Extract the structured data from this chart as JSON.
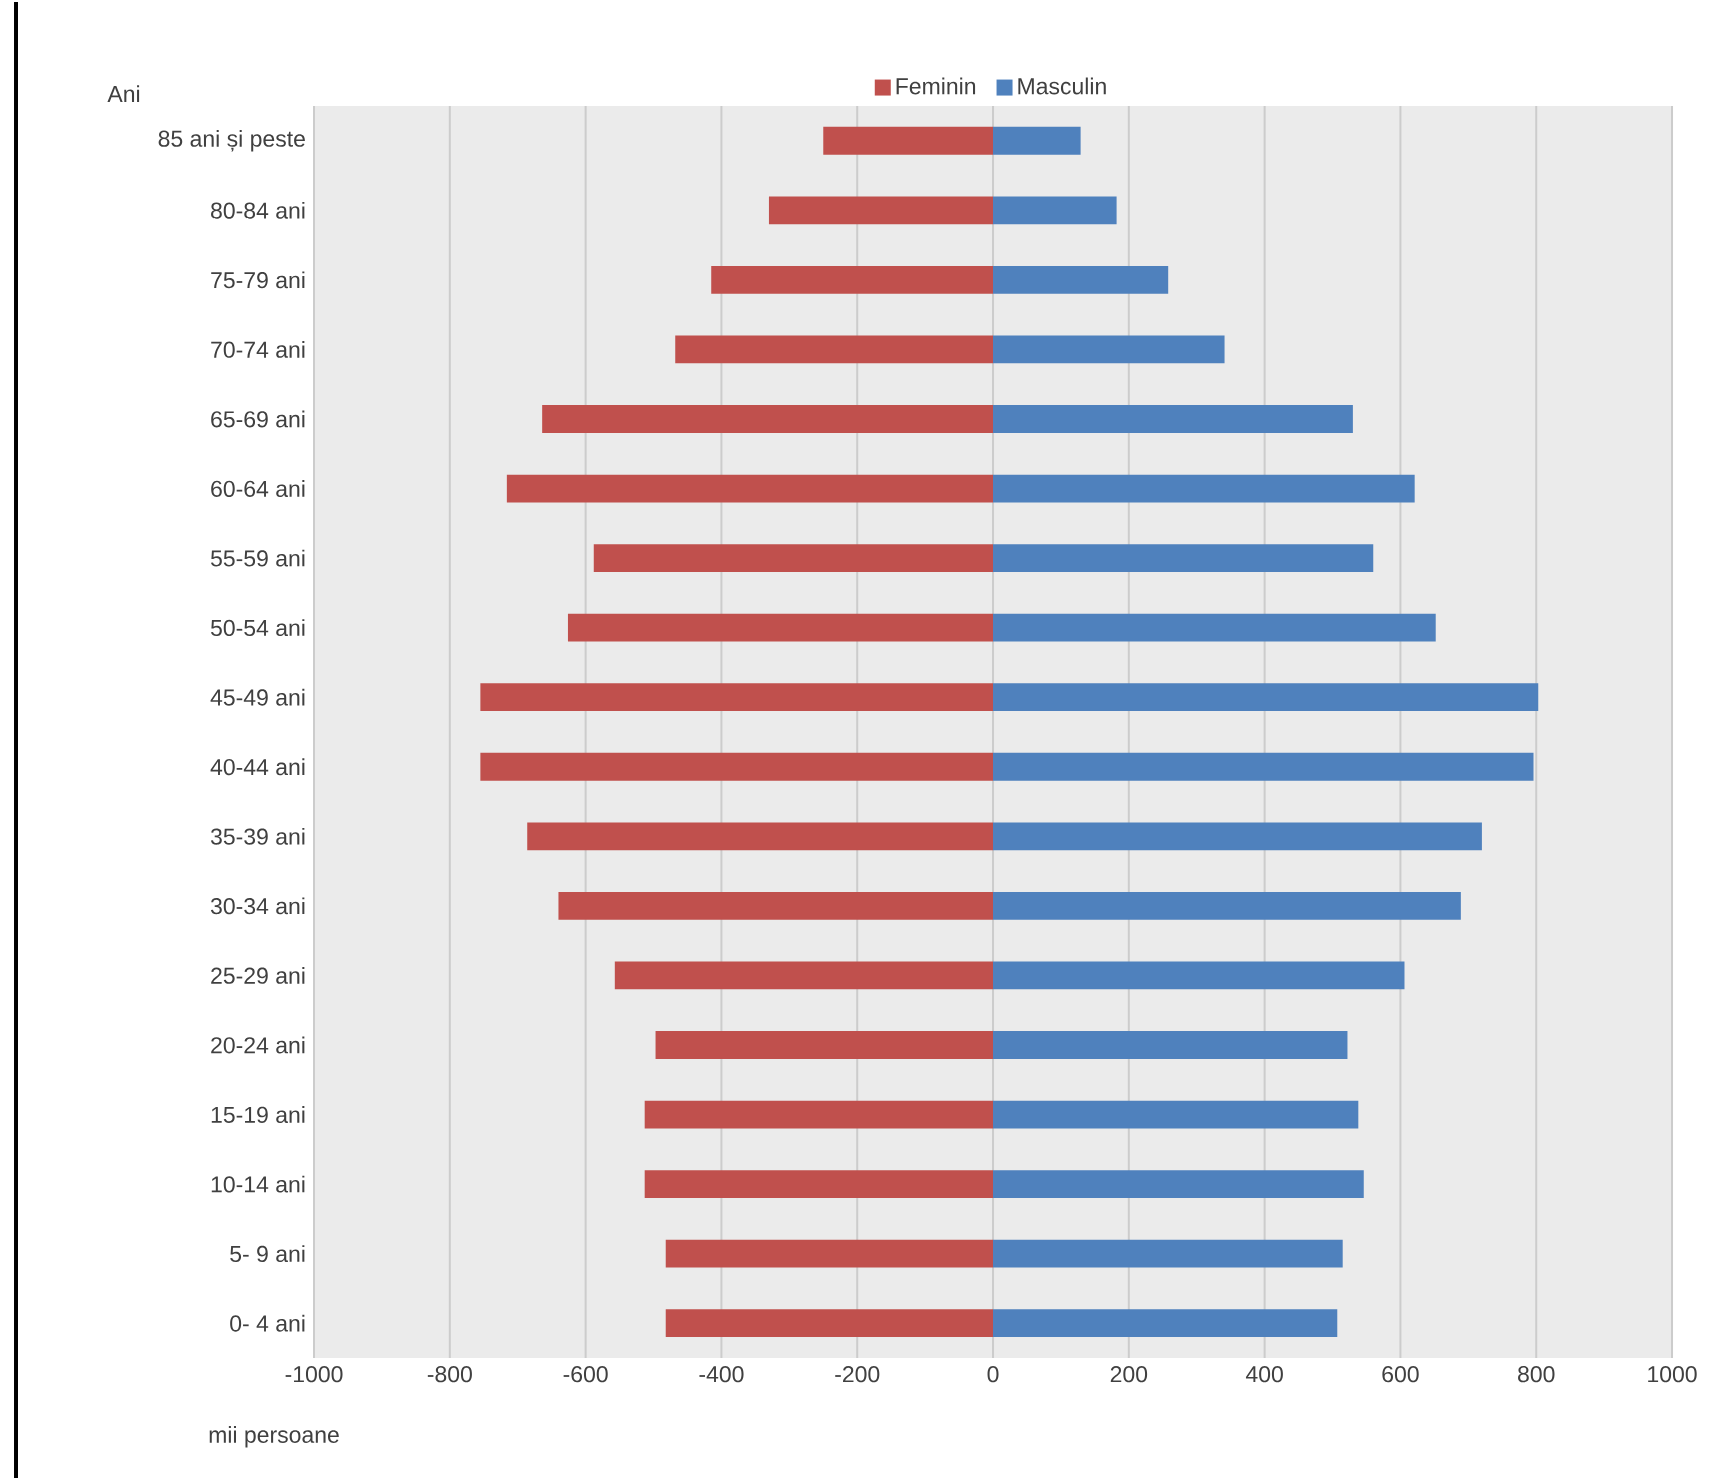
{
  "chart_data": {
    "type": "bar",
    "orientation": "horizontal",
    "stacked": true,
    "xlabel": "mii persoane",
    "ylabel": "Ani",
    "categories": [
      "85 ani și peste",
      "80-84 ani",
      "75-79 ani",
      "70-74 ani",
      "65-69 ani",
      "60-64 ani",
      "55-59 ani",
      "50-54 ani",
      "45-49 ani",
      "40-44 ani",
      "35-39 ani",
      "30-34 ani",
      "25-29 ani",
      "20-24 ani",
      "15-19 ani",
      "10-14 ani",
      "5- 9 ani",
      "0- 4 ani"
    ],
    "series": [
      {
        "name": "Feminin",
        "color": "#c0504d",
        "values": [
          -250,
          -330,
          -415,
          -468,
          -664,
          -716,
          -588,
          -626,
          -755,
          -755,
          -686,
          -640,
          -557,
          -497,
          -513,
          -513,
          -482,
          -482
        ]
      },
      {
        "name": "Masculin",
        "color": "#4f81bd",
        "values": [
          129,
          182,
          258,
          341,
          530,
          621,
          560,
          652,
          803,
          796,
          720,
          689,
          606,
          522,
          538,
          546,
          515,
          507
        ]
      }
    ],
    "xlim": [
      -1000,
      1000
    ],
    "xticks": [
      -1000,
      -800,
      -600,
      -400,
      -200,
      0,
      200,
      400,
      600,
      800,
      1000
    ],
    "grid": "x",
    "legend": "top"
  }
}
